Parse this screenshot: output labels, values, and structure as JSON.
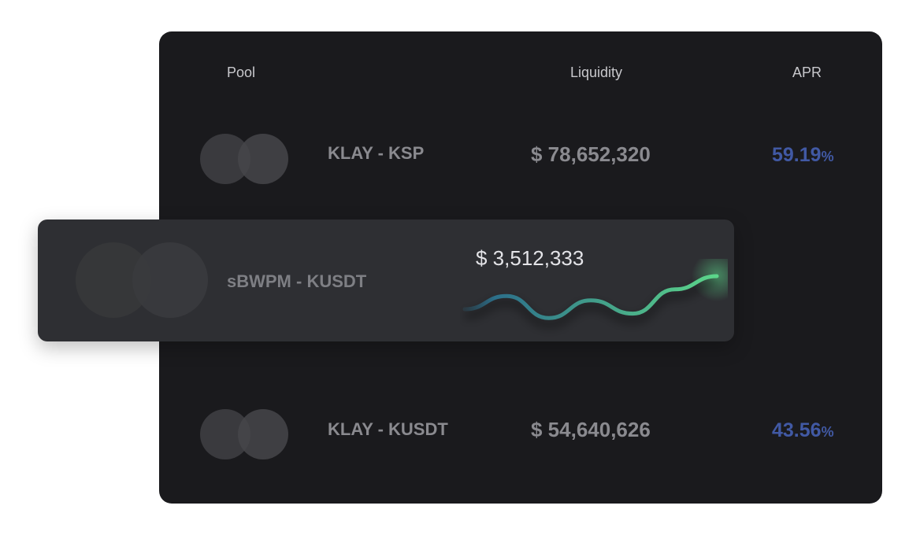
{
  "table": {
    "headers": {
      "pool": "Pool",
      "liquidity": "Liquidity",
      "apr": "APR"
    },
    "rows": [
      {
        "pool": "KLAY - KSP",
        "liquidity": "$ 78,652,320",
        "apr": "59.19",
        "apr_unit": "%"
      },
      {
        "pool": "sBWPM - KUSDT",
        "liquidity": "$ 3,512,333",
        "highlighted": true,
        "trend": [
          0.25,
          0.55,
          0.05,
          0.45,
          0.15,
          0.7,
          1.0
        ]
      },
      {
        "pool": "KLAY - KUSDT",
        "liquidity": "$ 54,640,626",
        "apr": "43.56",
        "apr_unit": "%"
      }
    ]
  },
  "colors": {
    "panel_bg": "#1a1a1d",
    "highlight_bg": "#2e2f33",
    "apr_accent": "#4159a4",
    "sparkline_start": "#2c6f8a",
    "sparkline_end": "#5cd68a"
  }
}
